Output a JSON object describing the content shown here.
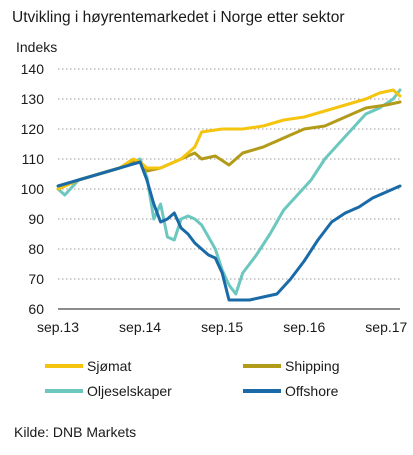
{
  "chart_data": {
    "type": "line",
    "title": "Utvikling i høyrentemarkedet i Norge etter sektor",
    "ylabel": "Indeks",
    "xlabel": "",
    "ylim": [
      60,
      140
    ],
    "yticks": [
      60,
      70,
      80,
      90,
      100,
      110,
      120,
      130,
      140
    ],
    "xlim": [
      "2013-09",
      "2017-11"
    ],
    "xticks": [
      "sep.13",
      "sep.14",
      "sep.15",
      "sep.16",
      "sep.17"
    ],
    "grid": "horizontal dotted",
    "legend_position": "bottom",
    "source": "Kilde: DNB Markets",
    "series": [
      {
        "name": "Sjømat",
        "color": "#f5c40f",
        "points": [
          [
            "2013-09",
            100
          ],
          [
            "2013-12",
            103
          ],
          [
            "2014-03",
            105
          ],
          [
            "2014-06",
            107
          ],
          [
            "2014-08",
            110
          ],
          [
            "2014-09",
            109
          ],
          [
            "2014-10",
            107
          ],
          [
            "2014-12",
            107
          ],
          [
            "2015-03",
            110
          ],
          [
            "2015-05",
            114
          ],
          [
            "2015-06",
            119
          ],
          [
            "2015-09",
            120
          ],
          [
            "2015-12",
            120
          ],
          [
            "2016-03",
            121
          ],
          [
            "2016-06",
            123
          ],
          [
            "2016-09",
            124
          ],
          [
            "2016-12",
            126
          ],
          [
            "2017-03",
            128
          ],
          [
            "2017-06",
            130
          ],
          [
            "2017-08",
            132
          ],
          [
            "2017-10",
            133
          ],
          [
            "2017-11",
            131
          ]
        ]
      },
      {
        "name": "Shipping",
        "color": "#b39b1a",
        "points": [
          [
            "2013-09",
            100
          ],
          [
            "2013-12",
            103
          ],
          [
            "2014-03",
            105
          ],
          [
            "2014-06",
            107
          ],
          [
            "2014-08",
            109
          ],
          [
            "2014-09",
            109
          ],
          [
            "2014-10",
            106
          ],
          [
            "2014-12",
            107
          ],
          [
            "2015-03",
            110
          ],
          [
            "2015-05",
            112
          ],
          [
            "2015-06",
            110
          ],
          [
            "2015-08",
            111
          ],
          [
            "2015-10",
            108
          ],
          [
            "2015-12",
            112
          ],
          [
            "2016-03",
            114
          ],
          [
            "2016-06",
            117
          ],
          [
            "2016-09",
            120
          ],
          [
            "2016-12",
            121
          ],
          [
            "2017-03",
            124
          ],
          [
            "2017-06",
            127
          ],
          [
            "2017-09",
            128
          ],
          [
            "2017-11",
            129
          ]
        ]
      },
      {
        "name": "Oljeselskaper",
        "color": "#6cc7bf",
        "points": [
          [
            "2013-09",
            100
          ],
          [
            "2013-10",
            98
          ],
          [
            "2013-12",
            103
          ],
          [
            "2014-03",
            105
          ],
          [
            "2014-06",
            107
          ],
          [
            "2014-09",
            110
          ],
          [
            "2014-10",
            104
          ],
          [
            "2014-11",
            90
          ],
          [
            "2014-12",
            95
          ],
          [
            "2015-01",
            84
          ],
          [
            "2015-02",
            83
          ],
          [
            "2015-03",
            90
          ],
          [
            "2015-04",
            91
          ],
          [
            "2015-05",
            90
          ],
          [
            "2015-06",
            88
          ],
          [
            "2015-07",
            84
          ],
          [
            "2015-08",
            80
          ],
          [
            "2015-09",
            73
          ],
          [
            "2015-10",
            68
          ],
          [
            "2015-11",
            65
          ],
          [
            "2015-12",
            72
          ],
          [
            "2016-02",
            78
          ],
          [
            "2016-04",
            85
          ],
          [
            "2016-06",
            93
          ],
          [
            "2016-08",
            98
          ],
          [
            "2016-10",
            103
          ],
          [
            "2016-12",
            110
          ],
          [
            "2017-02",
            115
          ],
          [
            "2017-04",
            120
          ],
          [
            "2017-06",
            125
          ],
          [
            "2017-08",
            127
          ],
          [
            "2017-10",
            130
          ],
          [
            "2017-11",
            133
          ]
        ]
      },
      {
        "name": "Offshore",
        "color": "#1a6aa8",
        "points": [
          [
            "2013-09",
            101
          ],
          [
            "2013-12",
            103
          ],
          [
            "2014-03",
            105
          ],
          [
            "2014-06",
            107
          ],
          [
            "2014-09",
            109
          ],
          [
            "2014-10",
            103
          ],
          [
            "2014-11",
            95
          ],
          [
            "2014-12",
            89
          ],
          [
            "2015-01",
            90
          ],
          [
            "2015-02",
            92
          ],
          [
            "2015-03",
            87
          ],
          [
            "2015-04",
            85
          ],
          [
            "2015-05",
            82
          ],
          [
            "2015-06",
            80
          ],
          [
            "2015-07",
            78
          ],
          [
            "2015-08",
            77
          ],
          [
            "2015-09",
            72
          ],
          [
            "2015-10",
            63
          ],
          [
            "2015-11",
            63
          ],
          [
            "2016-01",
            63
          ],
          [
            "2016-03",
            64
          ],
          [
            "2016-05",
            65
          ],
          [
            "2016-07",
            70
          ],
          [
            "2016-09",
            76
          ],
          [
            "2016-11",
            83
          ],
          [
            "2017-01",
            89
          ],
          [
            "2017-03",
            92
          ],
          [
            "2017-05",
            94
          ],
          [
            "2017-07",
            97
          ],
          [
            "2017-09",
            99
          ],
          [
            "2017-11",
            101
          ]
        ]
      }
    ]
  }
}
